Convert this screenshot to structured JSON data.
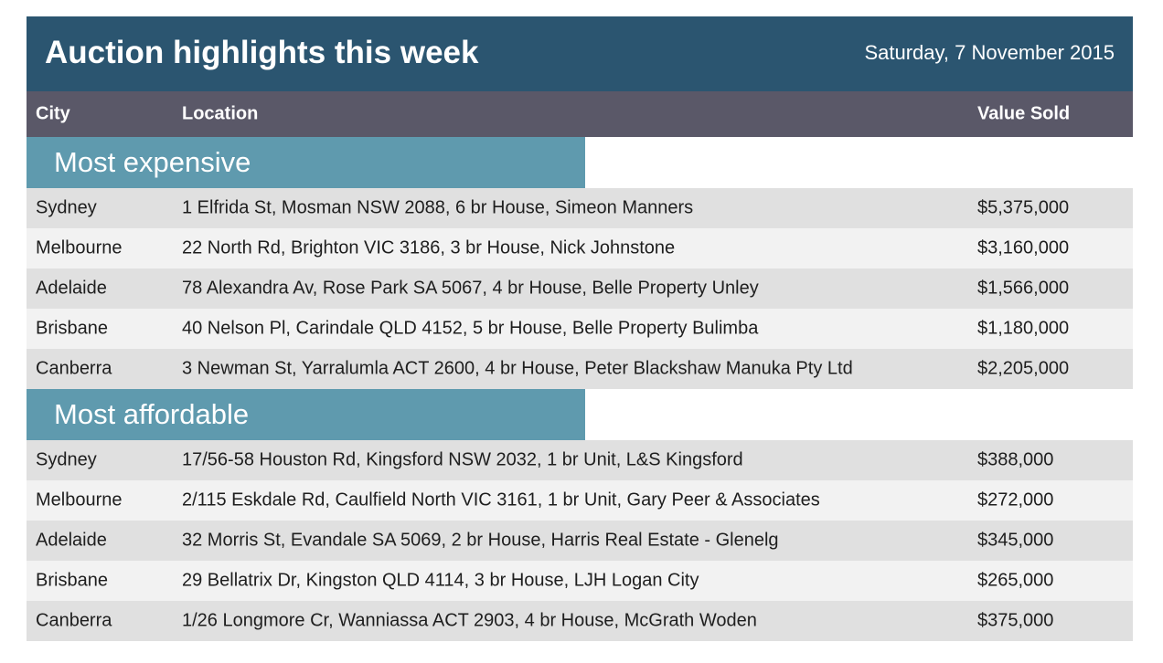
{
  "header": {
    "title": "Auction highlights this week",
    "date": "Saturday, 7 November 2015"
  },
  "columns": [
    "City",
    "Location",
    "Value Sold"
  ],
  "sections": [
    {
      "label": "Most expensive",
      "rows": [
        [
          "Sydney",
          "1 Elfrida St, Mosman NSW 2088, 6 br House, Simeon Manners",
          "$5,375,000"
        ],
        [
          "Melbourne",
          "22 North Rd, Brighton VIC 3186, 3 br House, Nick Johnstone",
          "$3,160,000"
        ],
        [
          "Adelaide",
          "78 Alexandra Av, Rose Park SA 5067, 4 br House, Belle Property Unley",
          "$1,566,000"
        ],
        [
          "Brisbane",
          "40 Nelson Pl, Carindale QLD 4152, 5 br House, Belle Property Bulimba",
          "$1,180,000"
        ],
        [
          "Canberra",
          "3 Newman St, Yarralumla ACT 2600, 4 br House, Peter Blackshaw Manuka Pty Ltd",
          "$2,205,000"
        ]
      ]
    },
    {
      "label": "Most affordable",
      "rows": [
        [
          "Sydney",
          "17/56-58 Houston Rd, Kingsford NSW 2032, 1 br Unit, L&S Kingsford",
          "$388,000"
        ],
        [
          "Melbourne",
          "2/115 Eskdale Rd, Caulfield North VIC 3161, 1 br Unit, Gary Peer & Associates",
          "$272,000"
        ],
        [
          "Adelaide",
          "32 Morris St, Evandale SA 5069, 2 br House, Harris Real Estate - Glenelg",
          "$345,000"
        ],
        [
          "Brisbane",
          "29 Bellatrix Dr, Kingston QLD 4114, 3 br House, LJH Logan City",
          "$265,000"
        ],
        [
          "Canberra",
          "1/26 Longmore Cr, Wanniassa ACT 2903, 4 br House, McGrath Woden",
          "$375,000"
        ]
      ]
    }
  ]
}
